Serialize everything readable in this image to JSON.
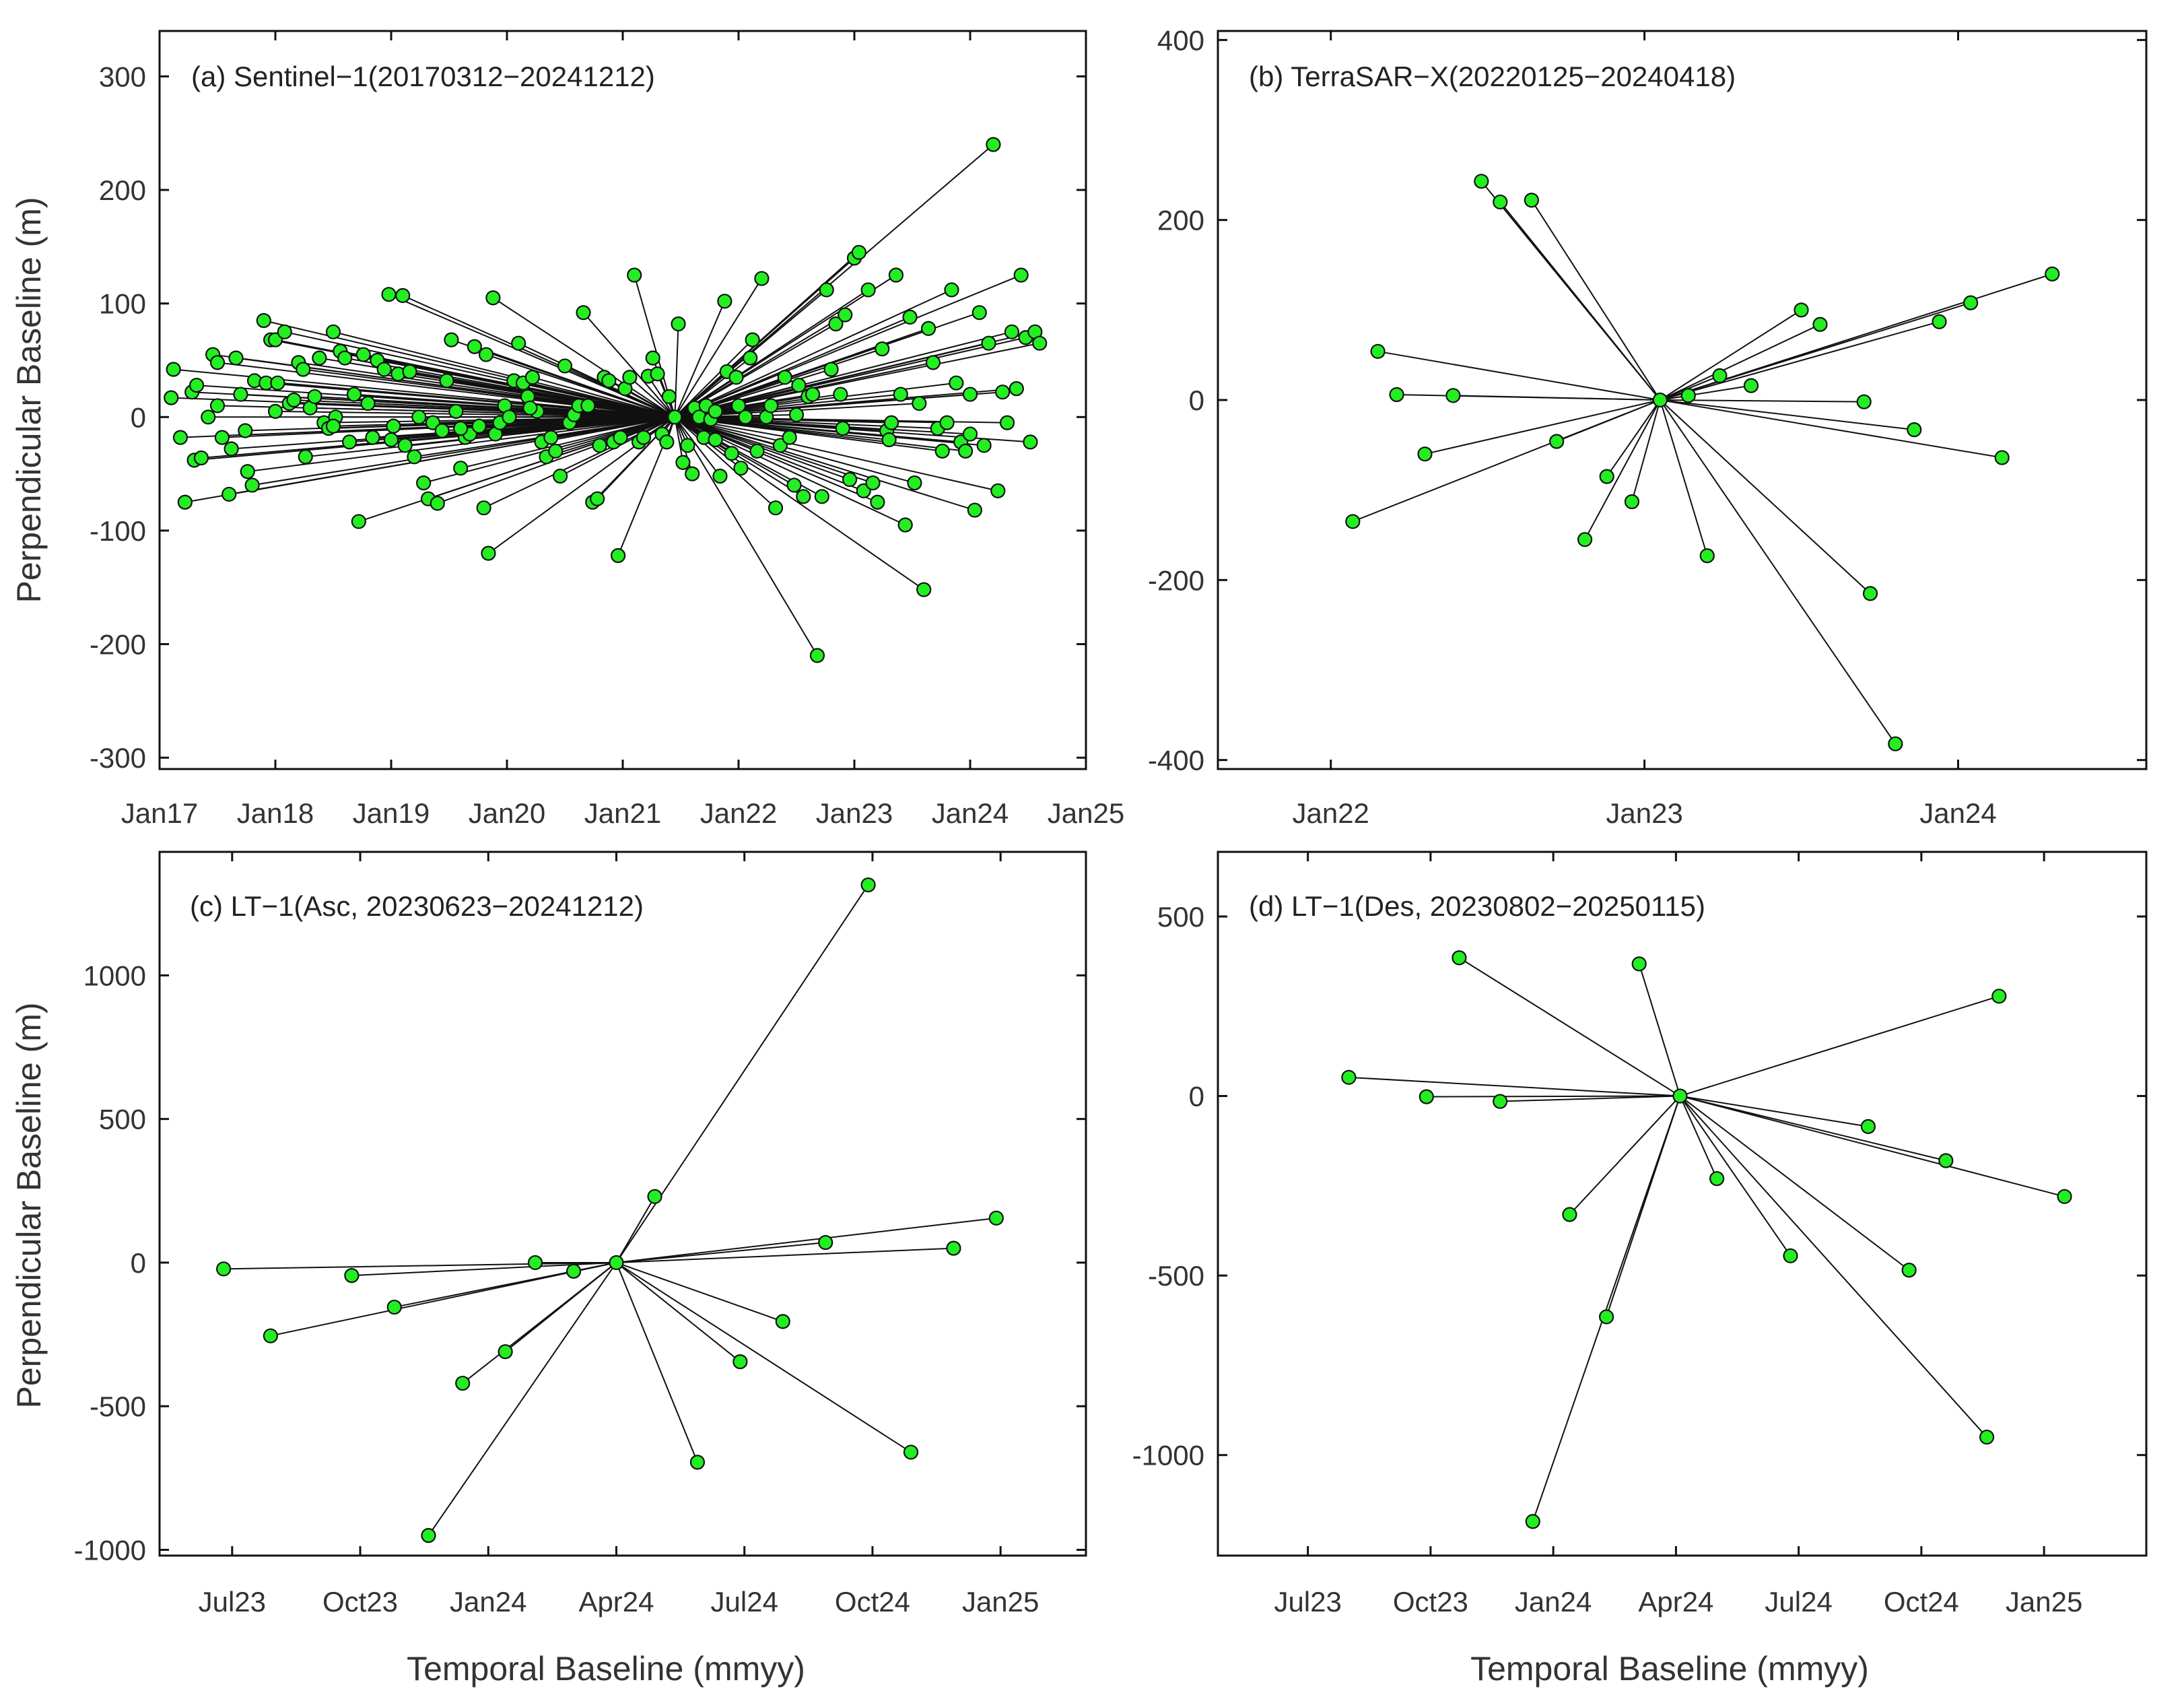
{
  "figure": {
    "ylabel": "Perpendicular Baseline (m)",
    "xlabel": "Temporal Baseline (mmyy)",
    "point_fill": "#22ee22",
    "point_stroke": "#111111",
    "line_color": "#111111"
  },
  "chart_data": [
    {
      "type": "scatter",
      "title": "(a) Sentinel−1(20170312−20241212)",
      "x_unit": "years since 2017-01",
      "xlim": [
        0,
        8.0
      ],
      "ylim": [
        -310,
        340
      ],
      "yticks": [
        -300,
        -200,
        -100,
        0,
        100,
        200,
        300
      ],
      "ytick_labels": [
        "-300",
        "-200",
        "-100",
        "0",
        "100",
        "200",
        "300"
      ],
      "xticks": [
        0,
        1,
        2,
        3,
        4,
        5,
        6,
        7,
        8
      ],
      "xtick_labels": [
        "Jan17",
        "Jan18",
        "Jan19",
        "Jan20",
        "Jan21",
        "Jan22",
        "Jan23",
        "Jan24",
        "Jan25"
      ],
      "hub": [
        4.45,
        0
      ],
      "points": [
        [
          0.12,
          42
        ],
        [
          0.1,
          17
        ],
        [
          0.18,
          -18
        ],
        [
          0.22,
          -75
        ],
        [
          0.28,
          22
        ],
        [
          0.3,
          -38
        ],
        [
          0.32,
          28
        ],
        [
          0.36,
          -36
        ],
        [
          0.42,
          0
        ],
        [
          0.46,
          55
        ],
        [
          0.5,
          48
        ],
        [
          0.54,
          -18
        ],
        [
          0.6,
          -68
        ],
        [
          0.62,
          -28
        ],
        [
          0.66,
          52
        ],
        [
          0.7,
          20
        ],
        [
          0.74,
          -12
        ],
        [
          0.76,
          -48
        ],
        [
          0.8,
          -60
        ],
        [
          0.82,
          32
        ],
        [
          0.9,
          85
        ],
        [
          0.92,
          30
        ],
        [
          0.96,
          68
        ],
        [
          1.0,
          68
        ],
        [
          1.02,
          30
        ],
        [
          1.08,
          75
        ],
        [
          1.12,
          12
        ],
        [
          1.16,
          15
        ],
        [
          1.2,
          48
        ],
        [
          1.24,
          42
        ],
        [
          1.26,
          -35
        ],
        [
          1.3,
          8
        ],
        [
          1.34,
          18
        ],
        [
          1.38,
          52
        ],
        [
          1.42,
          -5
        ],
        [
          1.46,
          -10
        ],
        [
          1.5,
          75
        ],
        [
          1.52,
          0
        ],
        [
          1.56,
          58
        ],
        [
          1.6,
          52
        ],
        [
          1.64,
          -22
        ],
        [
          1.68,
          20
        ],
        [
          1.72,
          -92
        ],
        [
          1.76,
          55
        ],
        [
          1.8,
          12
        ],
        [
          1.84,
          -18
        ],
        [
          1.88,
          50
        ],
        [
          1.94,
          42
        ],
        [
          1.98,
          108
        ],
        [
          2.02,
          -8
        ],
        [
          2.06,
          38
        ],
        [
          2.1,
          107
        ],
        [
          2.12,
          -25
        ],
        [
          2.16,
          40
        ],
        [
          2.2,
          -35
        ],
        [
          2.24,
          0
        ],
        [
          2.28,
          -58
        ],
        [
          2.32,
          -72
        ],
        [
          2.36,
          -5
        ],
        [
          2.4,
          -76
        ],
        [
          2.44,
          -12
        ],
        [
          2.48,
          32
        ],
        [
          2.52,
          68
        ],
        [
          2.56,
          5
        ],
        [
          2.6,
          -45
        ],
        [
          2.64,
          -18
        ],
        [
          2.68,
          -15
        ],
        [
          2.72,
          62
        ],
        [
          2.76,
          -8
        ],
        [
          2.8,
          -80
        ],
        [
          2.82,
          55
        ],
        [
          2.84,
          -120
        ],
        [
          2.88,
          105
        ],
        [
          2.9,
          -15
        ],
        [
          2.94,
          -5
        ],
        [
          2.98,
          10
        ],
        [
          3.02,
          0
        ],
        [
          3.06,
          32
        ],
        [
          3.1,
          65
        ],
        [
          3.14,
          30
        ],
        [
          3.18,
          18
        ],
        [
          3.22,
          35
        ],
        [
          3.26,
          5
        ],
        [
          3.3,
          -22
        ],
        [
          3.34,
          -35
        ],
        [
          3.38,
          -18
        ],
        [
          3.42,
          -30
        ],
        [
          3.46,
          -52
        ],
        [
          3.5,
          45
        ],
        [
          3.54,
          -5
        ],
        [
          3.58,
          2
        ],
        [
          3.62,
          10
        ],
        [
          3.66,
          92
        ],
        [
          3.7,
          10
        ],
        [
          3.74,
          -75
        ],
        [
          3.78,
          -72
        ],
        [
          3.8,
          -25
        ],
        [
          3.84,
          35
        ],
        [
          3.88,
          32
        ],
        [
          3.92,
          -22
        ],
        [
          3.96,
          -122
        ],
        [
          3.98,
          -18
        ],
        [
          4.02,
          25
        ],
        [
          4.06,
          35
        ],
        [
          4.1,
          125
        ],
        [
          4.14,
          -22
        ],
        [
          4.18,
          -18
        ],
        [
          4.22,
          36
        ],
        [
          4.26,
          52
        ],
        [
          4.3,
          38
        ],
        [
          4.34,
          -15
        ],
        [
          4.38,
          -22
        ],
        [
          4.4,
          18
        ],
        [
          4.44,
          0
        ],
        [
          4.48,
          82
        ],
        [
          4.52,
          -40
        ],
        [
          4.56,
          -25
        ],
        [
          4.6,
          -50
        ],
        [
          4.62,
          8
        ],
        [
          4.66,
          0
        ],
        [
          4.7,
          -18
        ],
        [
          4.72,
          10
        ],
        [
          4.76,
          -2
        ],
        [
          4.8,
          -20
        ],
        [
          4.84,
          -52
        ],
        [
          4.88,
          102
        ],
        [
          4.9,
          40
        ],
        [
          4.94,
          -32
        ],
        [
          4.98,
          35
        ],
        [
          5.02,
          -45
        ],
        [
          5.06,
          0
        ],
        [
          5.1,
          52
        ],
        [
          5.12,
          68
        ],
        [
          5.16,
          -30
        ],
        [
          5.2,
          122
        ],
        [
          5.24,
          0
        ],
        [
          5.28,
          10
        ],
        [
          5.32,
          -80
        ],
        [
          5.36,
          -25
        ],
        [
          5.4,
          35
        ],
        [
          5.44,
          -18
        ],
        [
          5.48,
          -60
        ],
        [
          5.52,
          28
        ],
        [
          5.56,
          -70
        ],
        [
          5.6,
          18
        ],
        [
          5.64,
          20
        ],
        [
          5.68,
          -210
        ],
        [
          5.72,
          -70
        ],
        [
          5.76,
          112
        ],
        [
          5.8,
          42
        ],
        [
          5.84,
          82
        ],
        [
          5.88,
          20
        ],
        [
          5.92,
          90
        ],
        [
          5.96,
          -55
        ],
        [
          6.0,
          140
        ],
        [
          6.04,
          145
        ],
        [
          6.08,
          -65
        ],
        [
          6.12,
          112
        ],
        [
          6.16,
          -58
        ],
        [
          6.2,
          -75
        ],
        [
          6.24,
          60
        ],
        [
          6.28,
          -12
        ],
        [
          6.32,
          -5
        ],
        [
          6.36,
          125
        ],
        [
          6.4,
          20
        ],
        [
          6.44,
          -95
        ],
        [
          6.48,
          88
        ],
        [
          6.52,
          -58
        ],
        [
          6.56,
          12
        ],
        [
          6.6,
          -152
        ],
        [
          6.64,
          78
        ],
        [
          6.68,
          48
        ],
        [
          6.72,
          -10
        ],
        [
          6.76,
          -30
        ],
        [
          6.8,
          -5
        ],
        [
          6.84,
          112
        ],
        [
          6.88,
          30
        ],
        [
          6.92,
          -22
        ],
        [
          6.96,
          -30
        ],
        [
          7.0,
          -15
        ],
        [
          7.04,
          -82
        ],
        [
          7.08,
          92
        ],
        [
          7.12,
          -25
        ],
        [
          7.16,
          65
        ],
        [
          7.2,
          240
        ],
        [
          7.24,
          -65
        ],
        [
          7.28,
          22
        ],
        [
          7.32,
          -5
        ],
        [
          7.36,
          75
        ],
        [
          7.4,
          25
        ],
        [
          7.44,
          125
        ],
        [
          7.48,
          70
        ],
        [
          7.52,
          -22
        ],
        [
          7.56,
          75
        ],
        [
          7.6,
          65
        ],
        [
          7.0,
          20
        ],
        [
          6.3,
          -20
        ],
        [
          5.9,
          -10
        ],
        [
          5.5,
          2
        ],
        [
          5.0,
          10
        ],
        [
          4.8,
          5
        ],
        [
          3.2,
          8
        ],
        [
          2.6,
          -10
        ],
        [
          2.0,
          -20
        ],
        [
          1.5,
          -8
        ],
        [
          1.0,
          5
        ],
        [
          0.5,
          10
        ]
      ]
    },
    {
      "type": "scatter",
      "title": "(b) TerraSAR−X(20220125−20240418)",
      "x_unit": "years since 2022-01",
      "xlim": [
        -0.36,
        2.6
      ],
      "ylim": [
        -410,
        410
      ],
      "yticks": [
        -400,
        -200,
        0,
        200,
        400
      ],
      "ytick_labels": [
        "-400",
        "-200",
        "0",
        "200",
        "400"
      ],
      "xticks": [
        0,
        1,
        2
      ],
      "xtick_labels": [
        "Jan22",
        "Jan23",
        "Jan24"
      ],
      "hub": [
        1.05,
        0
      ],
      "points": [
        [
          0.48,
          243
        ],
        [
          0.54,
          220
        ],
        [
          0.64,
          222
        ],
        [
          0.15,
          54
        ],
        [
          0.21,
          6
        ],
        [
          0.39,
          5
        ],
        [
          0.3,
          -60
        ],
        [
          0.07,
          -135
        ],
        [
          0.72,
          -46
        ],
        [
          0.88,
          -85
        ],
        [
          0.81,
          -155
        ],
        [
          0.96,
          -113
        ],
        [
          1.14,
          5
        ],
        [
          1.24,
          27
        ],
        [
          1.34,
          16
        ],
        [
          1.5,
          100
        ],
        [
          1.56,
          84
        ],
        [
          1.7,
          -2
        ],
        [
          1.94,
          87
        ],
        [
          2.04,
          108
        ],
        [
          2.3,
          140
        ],
        [
          1.86,
          -33
        ],
        [
          2.14,
          -64
        ],
        [
          1.72,
          -215
        ],
        [
          1.8,
          -382
        ],
        [
          1.2,
          -173
        ]
      ]
    },
    {
      "type": "scatter",
      "title": "(c) LT−1(Asc, 20230623−20241212)",
      "x_unit": "months since 2023-07",
      "xlim": [
        -1.7,
        20.0
      ],
      "ylim": [
        -1020,
        1430
      ],
      "yticks": [
        -1000,
        -500,
        0,
        500,
        1000
      ],
      "ytick_labels": [
        "-1000",
        "-500",
        "0",
        "500",
        "1000"
      ],
      "xticks": [
        0,
        3,
        6,
        9,
        12,
        15,
        18
      ],
      "xtick_labels": [
        "Jul23",
        "Oct23",
        "Jan24",
        "Apr24",
        "Jul24",
        "Oct24",
        "Jan25"
      ],
      "hub": [
        9.0,
        0
      ],
      "points": [
        [
          -0.2,
          -22
        ],
        [
          0.9,
          -255
        ],
        [
          2.8,
          -45
        ],
        [
          3.8,
          -155
        ],
        [
          4.6,
          -950
        ],
        [
          5.4,
          -420
        ],
        [
          6.4,
          -310
        ],
        [
          7.1,
          0
        ],
        [
          8.0,
          -30
        ],
        [
          9.9,
          230
        ],
        [
          10.9,
          -695
        ],
        [
          11.9,
          -345
        ],
        [
          12.9,
          -205
        ],
        [
          13.9,
          70
        ],
        [
          14.9,
          1315
        ],
        [
          15.9,
          -660
        ],
        [
          16.9,
          50
        ],
        [
          17.9,
          155
        ]
      ]
    },
    {
      "type": "scatter",
      "title": "(d) LT−1(Des, 20230802−20250115)",
      "x_unit": "months since 2023-07",
      "xlim": [
        -2.2,
        20.5
      ],
      "ylim": [
        -1280,
        680
      ],
      "yticks": [
        -1000,
        -500,
        0,
        500
      ],
      "ytick_labels": [
        "-1000",
        "-500",
        "0",
        "500"
      ],
      "xticks": [
        0,
        3,
        6,
        9,
        12,
        15,
        18
      ],
      "xtick_labels": [
        "Jul23",
        "Oct23",
        "Jan24",
        "Apr24",
        "Jul24",
        "Oct24",
        "Jan25"
      ],
      "hub": [
        9.1,
        0
      ],
      "points": [
        [
          1.0,
          52
        ],
        [
          2.9,
          -2
        ],
        [
          3.7,
          385
        ],
        [
          4.7,
          -15
        ],
        [
          5.5,
          -1185
        ],
        [
          6.4,
          -330
        ],
        [
          7.3,
          -615
        ],
        [
          8.1,
          368
        ],
        [
          10.0,
          -230
        ],
        [
          11.8,
          -445
        ],
        [
          13.7,
          -85
        ],
        [
          14.7,
          -485
        ],
        [
          15.6,
          -180
        ],
        [
          16.6,
          -950
        ],
        [
          16.9,
          278
        ],
        [
          18.5,
          -280
        ]
      ]
    }
  ]
}
